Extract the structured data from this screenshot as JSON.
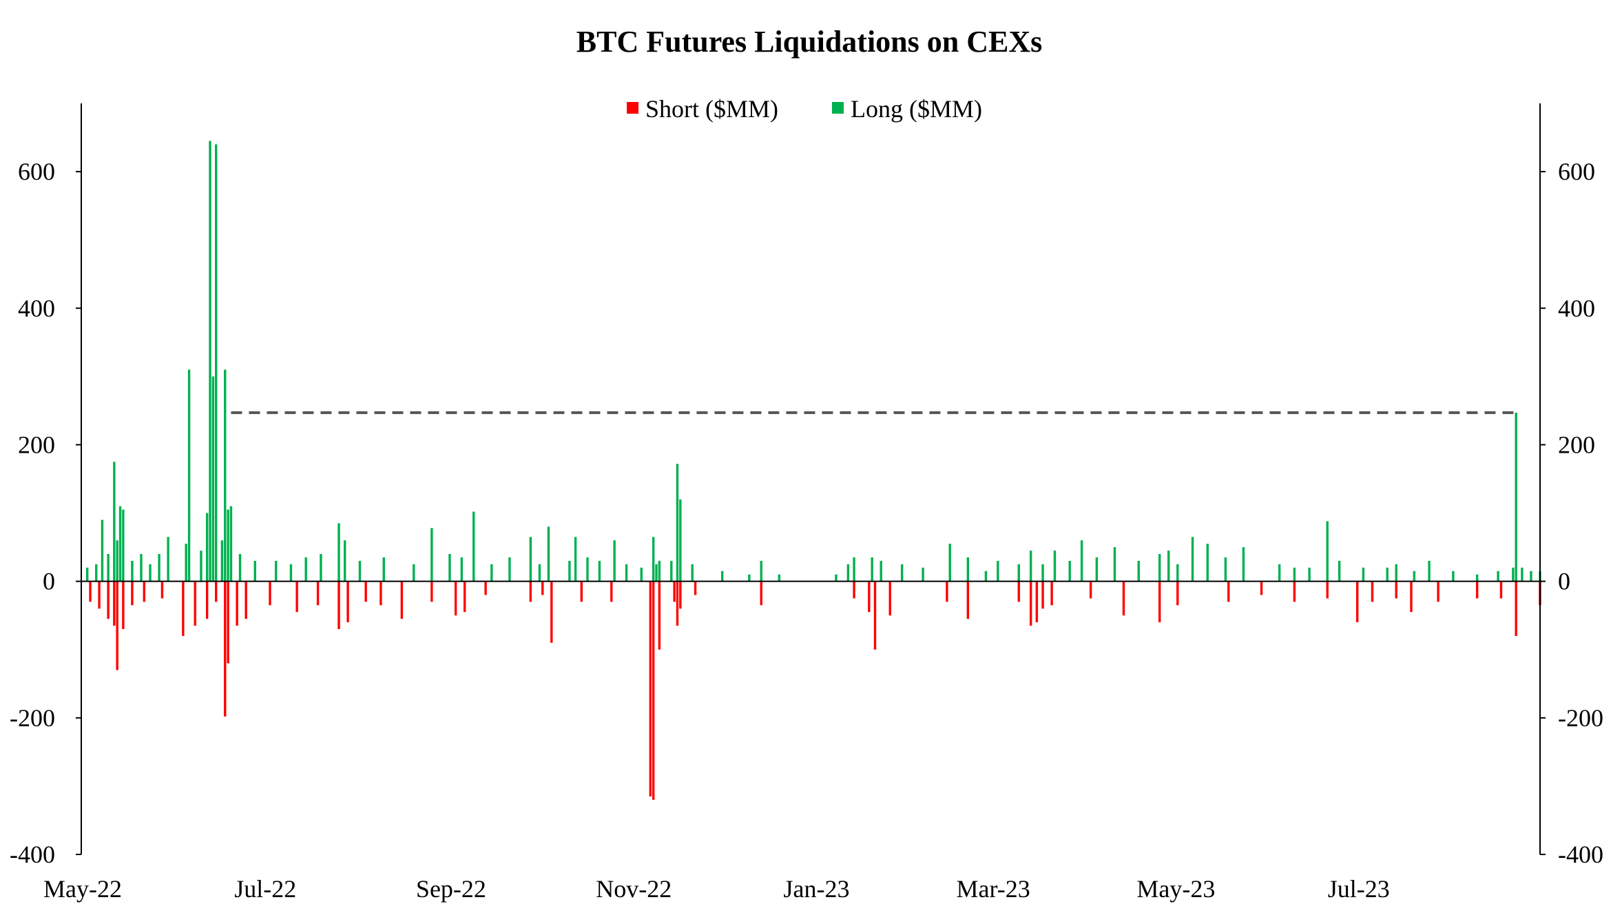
{
  "chart_data": {
    "type": "bar",
    "title": "BTC Futures Liquidations on CEXs",
    "legend": {
      "placement": "top-center",
      "items": [
        {
          "label": "Short ($MM)",
          "color": "#ff0000"
        },
        {
          "label": "Long ($MM)",
          "color": "#00b050"
        }
      ]
    },
    "x_range": [
      "2022-05-01",
      "2023-08-31"
    ],
    "x_tick_labels": [
      "May-22",
      "Jul-22",
      "Sep-22",
      "Nov-22",
      "Jan-23",
      "Mar-23",
      "May-23",
      "Jul-23"
    ],
    "x_tick_dates": [
      "2022-05-01",
      "2022-07-01",
      "2022-09-01",
      "2022-11-01",
      "2023-01-01",
      "2023-03-01",
      "2023-05-01",
      "2023-07-01"
    ],
    "ylim": [
      -400,
      700
    ],
    "y_ticks": [
      -400,
      -200,
      0,
      200,
      400,
      600
    ],
    "y_tick_labels": [
      "-400",
      "-200",
      "0",
      "200",
      "400",
      "600"
    ],
    "dual_y_axis": true,
    "grid": false,
    "reference_line": {
      "style": "dashed",
      "color": "#555555",
      "y": 247,
      "x_start": "2022-06-20",
      "x_end": "2023-08-23"
    },
    "series": [
      {
        "name": "Long ($MM)",
        "color": "#00b050",
        "points": [
          [
            "2022-05-03",
            20
          ],
          [
            "2022-05-06",
            25
          ],
          [
            "2022-05-08",
            90
          ],
          [
            "2022-05-10",
            40
          ],
          [
            "2022-05-12",
            175
          ],
          [
            "2022-05-13",
            60
          ],
          [
            "2022-05-14",
            110
          ],
          [
            "2022-05-15",
            105
          ],
          [
            "2022-05-18",
            30
          ],
          [
            "2022-05-21",
            40
          ],
          [
            "2022-05-24",
            25
          ],
          [
            "2022-05-27",
            40
          ],
          [
            "2022-05-30",
            65
          ],
          [
            "2022-06-05",
            55
          ],
          [
            "2022-06-06",
            310
          ],
          [
            "2022-06-10",
            45
          ],
          [
            "2022-06-12",
            100
          ],
          [
            "2022-06-13",
            645
          ],
          [
            "2022-06-14",
            300
          ],
          [
            "2022-06-15",
            640
          ],
          [
            "2022-06-17",
            60
          ],
          [
            "2022-06-18",
            310
          ],
          [
            "2022-06-19",
            105
          ],
          [
            "2022-06-20",
            110
          ],
          [
            "2022-06-23",
            40
          ],
          [
            "2022-06-28",
            30
          ],
          [
            "2022-07-05",
            30
          ],
          [
            "2022-07-10",
            25
          ],
          [
            "2022-07-15",
            35
          ],
          [
            "2022-07-20",
            40
          ],
          [
            "2022-07-26",
            85
          ],
          [
            "2022-07-28",
            60
          ],
          [
            "2022-08-02",
            30
          ],
          [
            "2022-08-10",
            35
          ],
          [
            "2022-08-20",
            25
          ],
          [
            "2022-08-26",
            78
          ],
          [
            "2022-09-01",
            40
          ],
          [
            "2022-09-05",
            35
          ],
          [
            "2022-09-09",
            102
          ],
          [
            "2022-09-15",
            25
          ],
          [
            "2022-09-21",
            35
          ],
          [
            "2022-09-28",
            65
          ],
          [
            "2022-10-01",
            25
          ],
          [
            "2022-10-04",
            80
          ],
          [
            "2022-10-11",
            30
          ],
          [
            "2022-10-13",
            65
          ],
          [
            "2022-10-17",
            35
          ],
          [
            "2022-10-21",
            30
          ],
          [
            "2022-10-26",
            60
          ],
          [
            "2022-10-30",
            25
          ],
          [
            "2022-11-04",
            20
          ],
          [
            "2022-11-08",
            65
          ],
          [
            "2022-11-09",
            25
          ],
          [
            "2022-11-10",
            30
          ],
          [
            "2022-11-14",
            30
          ],
          [
            "2022-11-16",
            172
          ],
          [
            "2022-11-17",
            120
          ],
          [
            "2022-11-21",
            25
          ],
          [
            "2022-12-01",
            15
          ],
          [
            "2022-12-10",
            10
          ],
          [
            "2022-12-14",
            30
          ],
          [
            "2022-12-20",
            10
          ],
          [
            "2023-01-08",
            10
          ],
          [
            "2023-01-12",
            25
          ],
          [
            "2023-01-14",
            35
          ],
          [
            "2023-01-20",
            35
          ],
          [
            "2023-01-23",
            30
          ],
          [
            "2023-01-30",
            25
          ],
          [
            "2023-02-06",
            20
          ],
          [
            "2023-02-15",
            55
          ],
          [
            "2023-02-21",
            35
          ],
          [
            "2023-02-27",
            15
          ],
          [
            "2023-03-03",
            30
          ],
          [
            "2023-03-10",
            25
          ],
          [
            "2023-03-14",
            45
          ],
          [
            "2023-03-18",
            25
          ],
          [
            "2023-03-22",
            45
          ],
          [
            "2023-03-27",
            30
          ],
          [
            "2023-03-31",
            60
          ],
          [
            "2023-04-05",
            35
          ],
          [
            "2023-04-11",
            50
          ],
          [
            "2023-04-19",
            30
          ],
          [
            "2023-04-26",
            40
          ],
          [
            "2023-04-29",
            45
          ],
          [
            "2023-05-02",
            25
          ],
          [
            "2023-05-07",
            65
          ],
          [
            "2023-05-12",
            55
          ],
          [
            "2023-05-18",
            35
          ],
          [
            "2023-05-24",
            50
          ],
          [
            "2023-06-05",
            25
          ],
          [
            "2023-06-10",
            20
          ],
          [
            "2023-06-15",
            20
          ],
          [
            "2023-06-21",
            88
          ],
          [
            "2023-06-25",
            30
          ],
          [
            "2023-07-03",
            20
          ],
          [
            "2023-07-11",
            20
          ],
          [
            "2023-07-14",
            25
          ],
          [
            "2023-07-20",
            15
          ],
          [
            "2023-07-25",
            30
          ],
          [
            "2023-08-02",
            15
          ],
          [
            "2023-08-10",
            10
          ],
          [
            "2023-08-17",
            15
          ],
          [
            "2023-08-22",
            20
          ],
          [
            "2023-08-23",
            247
          ],
          [
            "2023-08-25",
            20
          ],
          [
            "2023-08-28",
            15
          ],
          [
            "2023-08-31",
            15
          ]
        ]
      },
      {
        "name": "Short ($MM)",
        "color": "#ff0000",
        "points": [
          [
            "2022-05-04",
            -30
          ],
          [
            "2022-05-07",
            -40
          ],
          [
            "2022-05-10",
            -55
          ],
          [
            "2022-05-12",
            -65
          ],
          [
            "2022-05-13",
            -130
          ],
          [
            "2022-05-15",
            -70
          ],
          [
            "2022-05-18",
            -35
          ],
          [
            "2022-05-22",
            -30
          ],
          [
            "2022-05-28",
            -25
          ],
          [
            "2022-06-04",
            -80
          ],
          [
            "2022-06-08",
            -65
          ],
          [
            "2022-06-12",
            -55
          ],
          [
            "2022-06-15",
            -30
          ],
          [
            "2022-06-18",
            -198
          ],
          [
            "2022-06-19",
            -120
          ],
          [
            "2022-06-22",
            -65
          ],
          [
            "2022-06-25",
            -55
          ],
          [
            "2022-07-03",
            -35
          ],
          [
            "2022-07-12",
            -45
          ],
          [
            "2022-07-19",
            -35
          ],
          [
            "2022-07-26",
            -70
          ],
          [
            "2022-07-29",
            -60
          ],
          [
            "2022-08-04",
            -30
          ],
          [
            "2022-08-09",
            -35
          ],
          [
            "2022-08-16",
            -55
          ],
          [
            "2022-08-26",
            -30
          ],
          [
            "2022-09-03",
            -50
          ],
          [
            "2022-09-06",
            -45
          ],
          [
            "2022-09-13",
            -20
          ],
          [
            "2022-09-28",
            -30
          ],
          [
            "2022-10-02",
            -20
          ],
          [
            "2022-10-05",
            -90
          ],
          [
            "2022-10-15",
            -30
          ],
          [
            "2022-10-25",
            -30
          ],
          [
            "2022-11-07",
            -315
          ],
          [
            "2022-11-08",
            -320
          ],
          [
            "2022-11-10",
            -100
          ],
          [
            "2022-11-15",
            -30
          ],
          [
            "2022-11-16",
            -65
          ],
          [
            "2022-11-17",
            -40
          ],
          [
            "2022-11-22",
            -20
          ],
          [
            "2022-12-14",
            -35
          ],
          [
            "2023-01-14",
            -25
          ],
          [
            "2023-01-19",
            -45
          ],
          [
            "2023-01-21",
            -100
          ],
          [
            "2023-01-26",
            -50
          ],
          [
            "2023-02-14",
            -30
          ],
          [
            "2023-02-21",
            -55
          ],
          [
            "2023-03-10",
            -30
          ],
          [
            "2023-03-14",
            -65
          ],
          [
            "2023-03-16",
            -60
          ],
          [
            "2023-03-18",
            -40
          ],
          [
            "2023-03-21",
            -35
          ],
          [
            "2023-04-03",
            -25
          ],
          [
            "2023-04-14",
            -50
          ],
          [
            "2023-04-26",
            -60
          ],
          [
            "2023-05-02",
            -35
          ],
          [
            "2023-05-19",
            -30
          ],
          [
            "2023-05-30",
            -20
          ],
          [
            "2023-06-10",
            -30
          ],
          [
            "2023-06-21",
            -25
          ],
          [
            "2023-07-01",
            -60
          ],
          [
            "2023-07-06",
            -30
          ],
          [
            "2023-07-14",
            -25
          ],
          [
            "2023-07-19",
            -45
          ],
          [
            "2023-07-28",
            -30
          ],
          [
            "2023-08-10",
            -25
          ],
          [
            "2023-08-18",
            -25
          ],
          [
            "2023-08-23",
            -80
          ],
          [
            "2023-08-31",
            -35
          ]
        ]
      }
    ]
  }
}
